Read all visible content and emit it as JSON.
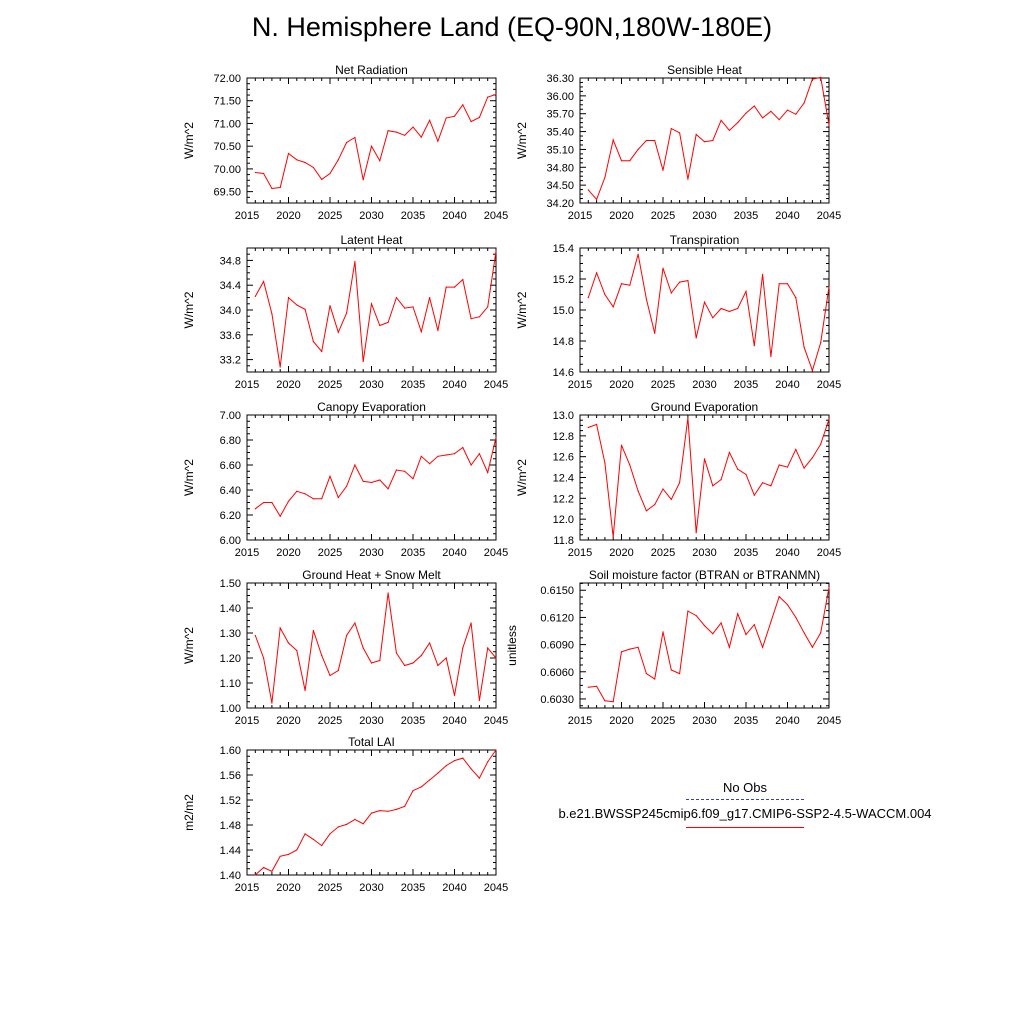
{
  "title": "N. Hemisphere Land (EQ-90N,180W-180E)",
  "legend": {
    "obs_label": "No Obs",
    "obs_color": "#3b3bb5",
    "model_label": "b.e21.BWSSP245cmip6.f09_g17.CMIP6-SSP2-4.5-WACCM.004",
    "model_color": "#ff0000"
  },
  "chart_data": [
    {
      "type": "line",
      "title": "Net Radiation",
      "ylabel": "W/m^2",
      "xlim": [
        2015,
        2045
      ],
      "ylim": [
        69.25,
        72.0
      ],
      "xticks": [
        2015,
        2020,
        2025,
        2030,
        2035,
        2040,
        2045
      ],
      "yticks": [
        69.5,
        70.0,
        70.5,
        71.0,
        71.5,
        72.0
      ],
      "ytick_labels": [
        "69.50",
        "70.00",
        "70.50",
        "71.00",
        "71.50",
        "72.00"
      ],
      "x": [
        2016,
        2017,
        2018,
        2019,
        2020,
        2021,
        2022,
        2023,
        2024,
        2025,
        2026,
        2027,
        2028,
        2029,
        2030,
        2031,
        2032,
        2033,
        2034,
        2035,
        2036,
        2037,
        2038,
        2039,
        2040,
        2041,
        2042,
        2043,
        2044,
        2045
      ],
      "values": [
        69.92,
        69.9,
        69.57,
        69.59,
        70.34,
        70.2,
        70.14,
        70.03,
        69.77,
        69.9,
        70.2,
        70.58,
        70.69,
        69.76,
        70.5,
        70.18,
        70.84,
        70.81,
        70.74,
        70.92,
        70.7,
        71.07,
        70.61,
        71.12,
        71.16,
        71.41,
        71.04,
        71.13,
        71.58,
        71.64
      ]
    },
    {
      "type": "line",
      "title": "Sensible Heat",
      "ylabel": "W/m^2",
      "xlim": [
        2015,
        2045
      ],
      "ylim": [
        34.2,
        36.3
      ],
      "xticks": [
        2015,
        2020,
        2025,
        2030,
        2035,
        2040,
        2045
      ],
      "yticks": [
        34.2,
        34.5,
        34.8,
        35.1,
        35.4,
        35.7,
        36.0,
        36.3
      ],
      "ytick_labels": [
        "34.20",
        "34.50",
        "34.80",
        "35.10",
        "35.40",
        "35.70",
        "36.00",
        "36.30"
      ],
      "x": [
        2016,
        2017,
        2018,
        2019,
        2020,
        2021,
        2022,
        2023,
        2024,
        2025,
        2026,
        2027,
        2028,
        2029,
        2030,
        2031,
        2032,
        2033,
        2034,
        2035,
        2036,
        2037,
        2038,
        2039,
        2040,
        2041,
        2042,
        2043,
        2044,
        2045
      ],
      "values": [
        34.42,
        34.26,
        34.63,
        35.26,
        34.91,
        34.91,
        35.1,
        35.25,
        35.25,
        34.75,
        35.45,
        35.38,
        34.6,
        35.35,
        35.23,
        35.25,
        35.59,
        35.42,
        35.55,
        35.71,
        35.83,
        35.63,
        35.74,
        35.6,
        35.76,
        35.69,
        35.88,
        36.28,
        36.31,
        35.51
      ]
    },
    {
      "type": "line",
      "title": "Latent Heat",
      "ylabel": "W/m^2",
      "xlim": [
        2015,
        2045
      ],
      "ylim": [
        33.0,
        35.0
      ],
      "xticks": [
        2015,
        2020,
        2025,
        2030,
        2035,
        2040,
        2045
      ],
      "yticks": [
        33.2,
        33.6,
        34.0,
        34.4,
        34.8
      ],
      "ytick_labels": [
        "33.2",
        "33.6",
        "34.0",
        "34.4",
        "34.8"
      ],
      "x": [
        2016,
        2017,
        2018,
        2019,
        2020,
        2021,
        2022,
        2023,
        2024,
        2025,
        2026,
        2027,
        2028,
        2029,
        2030,
        2031,
        2032,
        2033,
        2034,
        2035,
        2036,
        2037,
        2038,
        2039,
        2040,
        2041,
        2042,
        2043,
        2044,
        2045
      ],
      "values": [
        34.22,
        34.46,
        33.94,
        33.08,
        34.2,
        34.08,
        34.01,
        33.49,
        33.33,
        34.07,
        33.64,
        33.95,
        34.78,
        33.17,
        34.1,
        33.75,
        33.8,
        34.2,
        34.03,
        34.05,
        33.65,
        34.2,
        33.67,
        34.37,
        34.37,
        34.49,
        33.86,
        33.89,
        34.05,
        34.95
      ]
    },
    {
      "type": "line",
      "title": "Transpiration",
      "ylabel": "W/m^2",
      "xlim": [
        2015,
        2045
      ],
      "ylim": [
        14.6,
        15.4
      ],
      "xticks": [
        2015,
        2020,
        2025,
        2030,
        2035,
        2040,
        2045
      ],
      "yticks": [
        14.6,
        14.8,
        15.0,
        15.2,
        15.4
      ],
      "ytick_labels": [
        "14.6",
        "14.8",
        "15.0",
        "15.2",
        "15.4"
      ],
      "x": [
        2016,
        2017,
        2018,
        2019,
        2020,
        2021,
        2022,
        2023,
        2024,
        2025,
        2026,
        2027,
        2028,
        2029,
        2030,
        2031,
        2032,
        2033,
        2034,
        2035,
        2036,
        2037,
        2038,
        2039,
        2040,
        2041,
        2042,
        2043,
        2044,
        2045
      ],
      "values": [
        15.08,
        15.24,
        15.1,
        15.02,
        15.17,
        15.16,
        15.36,
        15.07,
        14.85,
        15.27,
        15.11,
        15.18,
        15.19,
        14.82,
        15.05,
        14.95,
        15.01,
        14.99,
        15.01,
        15.12,
        14.77,
        15.23,
        14.7,
        15.17,
        15.17,
        15.08,
        14.76,
        14.61,
        14.79,
        15.15
      ]
    },
    {
      "type": "line",
      "title": "Canopy Evaporation",
      "ylabel": "W/m^2",
      "xlim": [
        2015,
        2045
      ],
      "ylim": [
        6.0,
        7.0
      ],
      "xticks": [
        2015,
        2020,
        2025,
        2030,
        2035,
        2040,
        2045
      ],
      "yticks": [
        6.0,
        6.2,
        6.4,
        6.6,
        6.8,
        7.0
      ],
      "ytick_labels": [
        "6.00",
        "6.20",
        "6.40",
        "6.60",
        "6.80",
        "7.00"
      ],
      "x": [
        2016,
        2017,
        2018,
        2019,
        2020,
        2021,
        2022,
        2023,
        2024,
        2025,
        2026,
        2027,
        2028,
        2029,
        2030,
        2031,
        2032,
        2033,
        2034,
        2035,
        2036,
        2037,
        2038,
        2039,
        2040,
        2041,
        2042,
        2043,
        2044,
        2045
      ],
      "values": [
        6.25,
        6.3,
        6.3,
        6.19,
        6.31,
        6.39,
        6.37,
        6.33,
        6.33,
        6.51,
        6.34,
        6.43,
        6.6,
        6.47,
        6.46,
        6.48,
        6.41,
        6.56,
        6.55,
        6.49,
        6.67,
        6.61,
        6.67,
        6.68,
        6.69,
        6.74,
        6.6,
        6.69,
        6.54,
        6.82
      ]
    },
    {
      "type": "line",
      "title": "Ground Evaporation",
      "ylabel": "W/m^2",
      "xlim": [
        2015,
        2045
      ],
      "ylim": [
        11.8,
        13.0
      ],
      "xticks": [
        2015,
        2020,
        2025,
        2030,
        2035,
        2040,
        2045
      ],
      "yticks": [
        11.8,
        12.0,
        12.2,
        12.4,
        12.6,
        12.8,
        13.0
      ],
      "ytick_labels": [
        "11.8",
        "12.0",
        "12.2",
        "12.4",
        "12.6",
        "12.8",
        "13.0"
      ],
      "x": [
        2016,
        2017,
        2018,
        2019,
        2020,
        2021,
        2022,
        2023,
        2024,
        2025,
        2026,
        2027,
        2028,
        2029,
        2030,
        2031,
        2032,
        2033,
        2034,
        2035,
        2036,
        2037,
        2038,
        2039,
        2040,
        2041,
        2042,
        2043,
        2044,
        2045
      ],
      "values": [
        12.88,
        12.91,
        12.54,
        11.83,
        12.71,
        12.52,
        12.27,
        12.08,
        12.14,
        12.29,
        12.19,
        12.35,
        12.97,
        11.87,
        12.58,
        12.32,
        12.38,
        12.64,
        12.48,
        12.43,
        12.23,
        12.35,
        12.32,
        12.52,
        12.5,
        12.67,
        12.49,
        12.59,
        12.72,
        12.96
      ]
    },
    {
      "type": "line",
      "title": "Ground Heat + Snow Melt",
      "ylabel": "W/m^2",
      "xlim": [
        2015,
        2045
      ],
      "ylim": [
        1.0,
        1.5
      ],
      "xticks": [
        2015,
        2020,
        2025,
        2030,
        2035,
        2040,
        2045
      ],
      "yticks": [
        1.0,
        1.1,
        1.2,
        1.3,
        1.4,
        1.5
      ],
      "ytick_labels": [
        "1.00",
        "1.10",
        "1.20",
        "1.30",
        "1.40",
        "1.50"
      ],
      "x": [
        2016,
        2017,
        2018,
        2019,
        2020,
        2021,
        2022,
        2023,
        2024,
        2025,
        2026,
        2027,
        2028,
        2029,
        2030,
        2031,
        2032,
        2033,
        2034,
        2035,
        2036,
        2037,
        2038,
        2039,
        2040,
        2041,
        2042,
        2043,
        2044,
        2045
      ],
      "values": [
        1.29,
        1.2,
        1.02,
        1.32,
        1.26,
        1.23,
        1.07,
        1.31,
        1.21,
        1.13,
        1.15,
        1.29,
        1.34,
        1.24,
        1.18,
        1.19,
        1.46,
        1.22,
        1.17,
        1.18,
        1.21,
        1.26,
        1.17,
        1.2,
        1.05,
        1.24,
        1.34,
        1.03,
        1.24,
        1.2
      ]
    },
    {
      "type": "line",
      "title": "Soil moisture factor (BTRAN or BTRANMN)",
      "ylabel": "unitless",
      "xlim": [
        2015,
        2045
      ],
      "ylim": [
        0.602,
        0.6158
      ],
      "xticks": [
        2015,
        2020,
        2025,
        2030,
        2035,
        2040,
        2045
      ],
      "yticks": [
        0.603,
        0.606,
        0.609,
        0.612,
        0.615
      ],
      "ytick_labels": [
        "0.6030",
        "0.6060",
        "0.6090",
        "0.6120",
        "0.6150"
      ],
      "x": [
        2016,
        2017,
        2018,
        2019,
        2020,
        2021,
        2022,
        2023,
        2024,
        2025,
        2026,
        2027,
        2028,
        2029,
        2030,
        2031,
        2032,
        2033,
        2034,
        2035,
        2036,
        2037,
        2038,
        2039,
        2040,
        2041,
        2042,
        2043,
        2044,
        2045
      ],
      "values": [
        0.6043,
        0.6044,
        0.6028,
        0.6027,
        0.6082,
        0.6085,
        0.6087,
        0.6058,
        0.6052,
        0.6104,
        0.6062,
        0.6058,
        0.6127,
        0.6122,
        0.6111,
        0.6102,
        0.6114,
        0.6087,
        0.6124,
        0.6101,
        0.6112,
        0.6087,
        0.6115,
        0.6143,
        0.6134,
        0.612,
        0.6103,
        0.6087,
        0.6103,
        0.6153
      ]
    },
    {
      "type": "line",
      "title": "Total LAI",
      "ylabel": "m2/m2",
      "xlim": [
        2015,
        2045
      ],
      "ylim": [
        1.4,
        1.6
      ],
      "xticks": [
        2015,
        2020,
        2025,
        2030,
        2035,
        2040,
        2045
      ],
      "yticks": [
        1.4,
        1.44,
        1.48,
        1.52,
        1.56,
        1.6
      ],
      "ytick_labels": [
        "1.40",
        "1.44",
        "1.48",
        "1.52",
        "1.56",
        "1.60"
      ],
      "x": [
        2016,
        2017,
        2018,
        2019,
        2020,
        2021,
        2022,
        2023,
        2024,
        2025,
        2026,
        2027,
        2028,
        2029,
        2030,
        2031,
        2032,
        2033,
        2034,
        2035,
        2036,
        2037,
        2038,
        2039,
        2040,
        2041,
        2042,
        2043,
        2044,
        2045
      ],
      "values": [
        1.4,
        1.412,
        1.406,
        1.43,
        1.433,
        1.44,
        1.466,
        1.457,
        1.447,
        1.466,
        1.477,
        1.481,
        1.489,
        1.482,
        1.499,
        1.503,
        1.502,
        1.505,
        1.51,
        1.535,
        1.541,
        1.552,
        1.563,
        1.575,
        1.583,
        1.587,
        1.57,
        1.555,
        1.581,
        1.6
      ]
    }
  ]
}
